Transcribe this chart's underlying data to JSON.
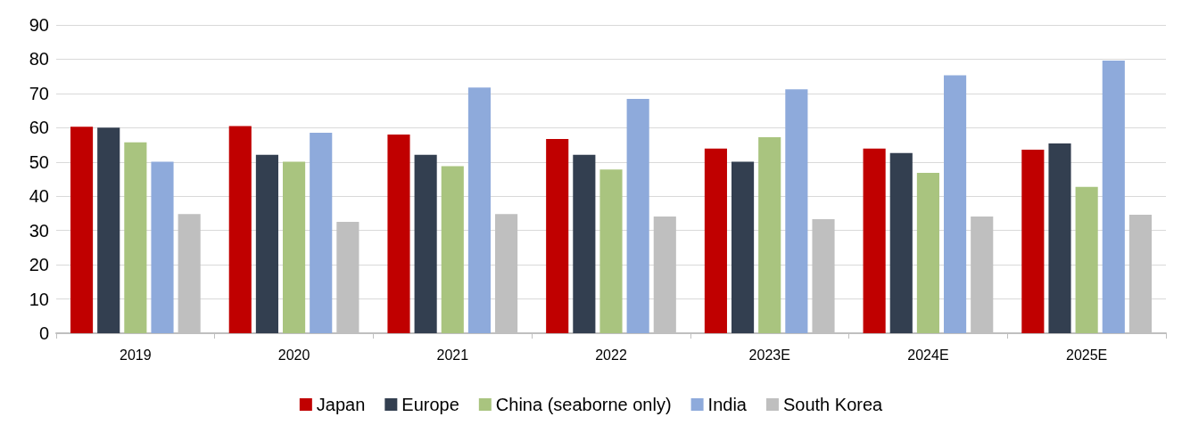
{
  "chart_data": {
    "type": "bar",
    "categories": [
      "2019",
      "2020",
      "2021",
      "2022",
      "2023E",
      "2024E",
      "2025E"
    ],
    "series": [
      {
        "name": "Japan",
        "color": "#c00000",
        "values": [
          60.3,
          60.5,
          58,
          56.7,
          53.9,
          53.9,
          53.6
        ]
      },
      {
        "name": "Europe",
        "color": "#333f50",
        "values": [
          60,
          52.1,
          52.1,
          52.1,
          50.1,
          52.6,
          55.4
        ]
      },
      {
        "name": "China (seaborne only)",
        "color": "#a9c47f",
        "values": [
          55.7,
          50.1,
          48.8,
          47.8,
          57.2,
          46.8,
          42.7
        ]
      },
      {
        "name": "India",
        "color": "#8eaadb",
        "values": [
          50.1,
          58.5,
          71.7,
          68.4,
          71.2,
          75.3,
          79.6
        ]
      },
      {
        "name": "South Korea",
        "color": "#bfbfbf",
        "values": [
          34.8,
          32.5,
          34.8,
          34.1,
          33.3,
          34.1,
          34.6
        ]
      }
    ],
    "ylim": [
      0,
      90
    ],
    "yticks": [
      0,
      10,
      20,
      30,
      40,
      50,
      60,
      70,
      80,
      90
    ],
    "grid": "y",
    "legend": "bottom"
  }
}
